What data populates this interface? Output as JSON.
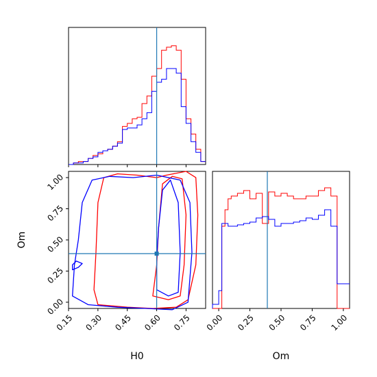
{
  "chart_data": {
    "type": "corner",
    "parameters": [
      "H0",
      "Om"
    ],
    "truths": {
      "H0": 0.6,
      "Om": 0.39
    },
    "colors": {
      "series_a": "#ff0000",
      "series_b": "#0000ff",
      "truth": "#1f77b4"
    },
    "panels": [
      {
        "id": "hist-H0",
        "type": "step-histogram",
        "xlim": [
          0.15,
          0.85
        ],
        "bin_edges": [
          0.15,
          0.175,
          0.2,
          0.225,
          0.25,
          0.275,
          0.3,
          0.325,
          0.35,
          0.375,
          0.4,
          0.425,
          0.45,
          0.475,
          0.5,
          0.525,
          0.55,
          0.575,
          0.6,
          0.625,
          0.65,
          0.675,
          0.7,
          0.725,
          0.75,
          0.775,
          0.8,
          0.825,
          0.85
        ],
        "series": [
          {
            "color": "red",
            "values": [
              0,
              1,
              2,
              2,
              4,
              6,
              7,
              9,
              10,
              12,
              15,
              25,
              27,
              30,
              31,
              40,
              45,
              58,
              63,
              75,
              77,
              78,
              75,
              56,
              30,
              20,
              10,
              2
            ]
          },
          {
            "color": "blue",
            "values": [
              0,
              1,
              1,
              2,
              4,
              5,
              8,
              9,
              10,
              12,
              14,
              23,
              24,
              24,
              26,
              30,
              34,
              48,
              54,
              56,
              63,
              63,
              60,
              38,
              27,
              15,
              8,
              2
            ]
          }
        ]
      },
      {
        "id": "contour-H0-Om",
        "type": "contour",
        "xlim": [
          0.15,
          0.85
        ],
        "ylim": [
          -0.05,
          1.05
        ],
        "series": [
          {
            "color": "red",
            "level": "outer",
            "polygon": [
              [
                0.3,
                -0.02
              ],
              [
                0.45,
                -0.04
              ],
              [
                0.58,
                -0.05
              ],
              [
                0.7,
                -0.04
              ],
              [
                0.76,
                0.02
              ],
              [
                0.8,
                0.3
              ],
              [
                0.81,
                0.7
              ],
              [
                0.8,
                1.0
              ],
              [
                0.75,
                1.05
              ],
              [
                0.65,
                1.02
              ],
              [
                0.6,
                1.0
              ],
              [
                0.5,
                1.02
              ],
              [
                0.4,
                1.03
              ],
              [
                0.33,
                1.0
              ],
              [
                0.3,
                0.8
              ],
              [
                0.29,
                0.4
              ],
              [
                0.28,
                0.1
              ]
            ]
          },
          {
            "color": "red",
            "level": "inner",
            "polygon": [
              [
                0.58,
                0.05
              ],
              [
                0.66,
                0.02
              ],
              [
                0.72,
                0.05
              ],
              [
                0.74,
                0.3
              ],
              [
                0.75,
                0.7
              ],
              [
                0.73,
                0.99
              ],
              [
                0.68,
                1.01
              ],
              [
                0.63,
                0.95
              ],
              [
                0.61,
                0.6
              ],
              [
                0.6,
                0.3
              ]
            ]
          },
          {
            "color": "blue",
            "level": "outer",
            "polygon": [
              [
                0.17,
                0.05
              ],
              [
                0.25,
                -0.02
              ],
              [
                0.4,
                -0.04
              ],
              [
                0.55,
                -0.05
              ],
              [
                0.68,
                -0.06
              ],
              [
                0.76,
                0.0
              ],
              [
                0.78,
                0.4
              ],
              [
                0.77,
                0.8
              ],
              [
                0.72,
                0.98
              ],
              [
                0.6,
                1.02
              ],
              [
                0.48,
                1.0
              ],
              [
                0.36,
                1.01
              ],
              [
                0.27,
                0.98
              ],
              [
                0.22,
                0.8
              ],
              [
                0.2,
                0.5
              ],
              [
                0.18,
                0.3
              ]
            ]
          },
          {
            "color": "blue",
            "level": "inner",
            "polygon": [
              [
                0.6,
                0.1
              ],
              [
                0.66,
                0.05
              ],
              [
                0.71,
                0.08
              ],
              [
                0.72,
                0.4
              ],
              [
                0.71,
                0.8
              ],
              [
                0.67,
                0.98
              ],
              [
                0.63,
                0.9
              ],
              [
                0.61,
                0.6
              ],
              [
                0.6,
                0.35
              ]
            ]
          },
          {
            "color": "blue",
            "level": "island",
            "polygon": [
              [
                0.17,
                0.26
              ],
              [
                0.2,
                0.28
              ],
              [
                0.22,
                0.31
              ],
              [
                0.19,
                0.33
              ],
              [
                0.17,
                0.3
              ]
            ]
          }
        ]
      },
      {
        "id": "hist-Om",
        "type": "step-histogram",
        "xlim": [
          -0.05,
          1.05
        ],
        "bin_edges": [
          -0.05,
          0.0,
          0.025,
          0.05,
          0.075,
          0.1,
          0.15,
          0.2,
          0.25,
          0.3,
          0.35,
          0.4,
          0.45,
          0.5,
          0.55,
          0.6,
          0.65,
          0.7,
          0.75,
          0.8,
          0.85,
          0.9,
          0.95,
          1.0,
          1.05
        ],
        "series": [
          {
            "color": "red",
            "values": [
              0,
              0,
              60,
              72,
              80,
              82,
              84,
              86,
              80,
              84,
              62,
              85,
              82,
              84,
              82,
              80,
              80,
              82,
              82,
              86,
              88,
              82,
              0,
              0
            ]
          },
          {
            "color": "blue",
            "values": [
              3,
              13,
              62,
              62,
              60,
              60,
              61,
              62,
              63,
              66,
              67,
              65,
              60,
              62,
              62,
              63,
              64,
              66,
              65,
              68,
              72,
              60,
              18,
              18
            ]
          }
        ]
      }
    ],
    "axes": {
      "H0": {
        "label": "H0",
        "ticks": [
          "0.15",
          "0.30",
          "0.45",
          "0.60",
          "0.75"
        ]
      },
      "Om": {
        "label": "Om",
        "ticks": [
          "0.00",
          "0.25",
          "0.50",
          "0.75",
          "1.00"
        ]
      }
    }
  }
}
